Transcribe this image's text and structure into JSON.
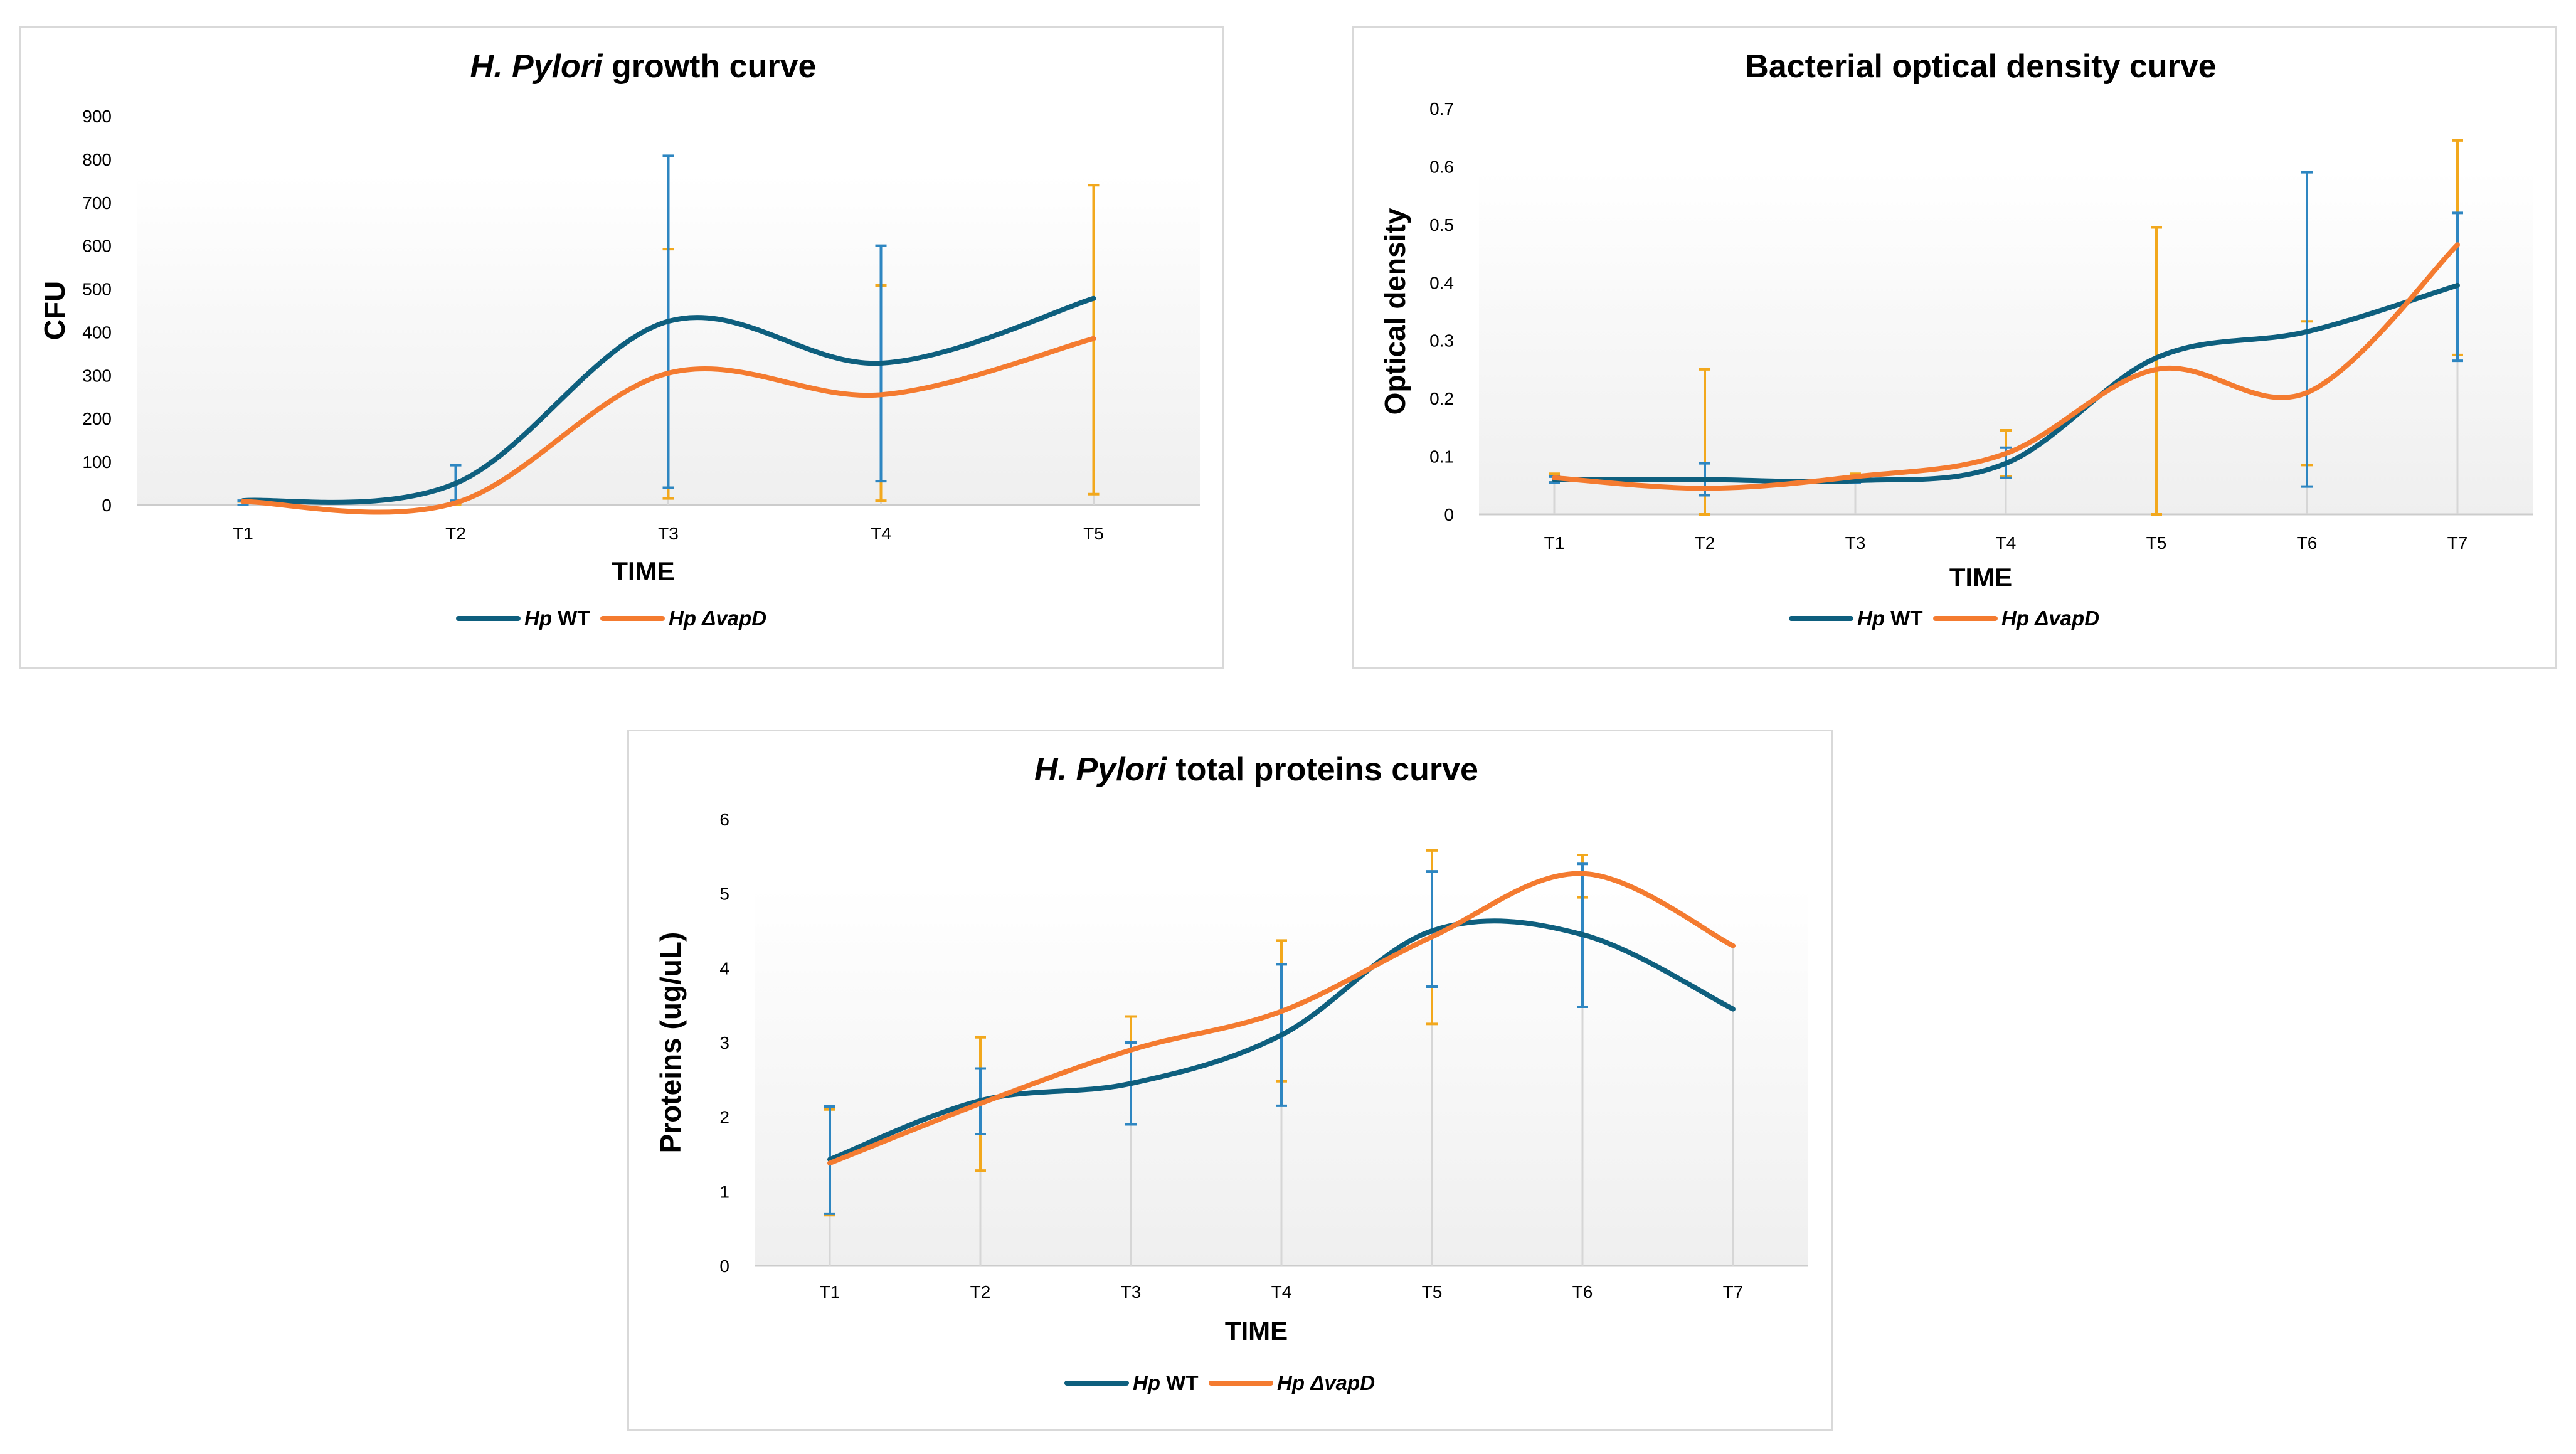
{
  "colors": {
    "wt": "#0e5f7e",
    "vapd": "#f47b30",
    "err_wt": "#2e86c1",
    "err_vapd": "#f2a81d",
    "drop": "#d6d6d6",
    "axis": "#cccccc"
  },
  "chart_data": [
    {
      "id": "growth",
      "type": "line",
      "title_italic": "H. Pylori",
      "title_rest": " growth curve",
      "xlabel": "TIME",
      "ylabel": "CFU",
      "categories": [
        "T1",
        "T2",
        "T3",
        "T4",
        "T5"
      ],
      "ylim": [
        0,
        900
      ],
      "yticks": [
        0,
        100,
        200,
        300,
        400,
        500,
        600,
        700,
        800,
        900
      ],
      "legend_position": "bottom",
      "series": [
        {
          "name": "Hp WT",
          "name_italic": "Hp",
          "name_rest": " WT",
          "key": "wt",
          "values": [
            10,
            50,
            425,
            328,
            478
          ],
          "err_low": [
            0,
            10,
            40,
            55,
            478
          ],
          "err_high": [
            10,
            92,
            808,
            600,
            478
          ]
        },
        {
          "name": "Hp ΔvapD",
          "name_italic": "Hp",
          "name_rest": " ΔvapD",
          "key": "vapd",
          "values": [
            8,
            5,
            305,
            255,
            385
          ],
          "err_low": [
            0,
            0,
            15,
            10,
            25
          ],
          "err_high": [
            8,
            5,
            592,
            508,
            740
          ]
        }
      ]
    },
    {
      "id": "od",
      "type": "line",
      "title_italic": "",
      "title_rest": "Bacterial optical density curve",
      "xlabel": "TIME",
      "ylabel": "Optical density",
      "categories": [
        "T1",
        "T2",
        "T3",
        "T4",
        "T5",
        "T6",
        "T7"
      ],
      "ylim": [
        0,
        0.7
      ],
      "yticks": [
        0,
        0.1,
        0.2,
        0.3,
        0.4,
        0.5,
        0.6,
        0.7
      ],
      "legend_position": "bottom",
      "series": [
        {
          "name": "Hp WT",
          "name_italic": "Hp",
          "name_rest": " WT",
          "key": "wt",
          "values": [
            0.06,
            0.06,
            0.058,
            0.088,
            0.27,
            0.315,
            0.395
          ],
          "err_low": [
            0.055,
            0.033,
            0.055,
            0.063,
            0.27,
            0.048,
            0.265
          ],
          "err_high": [
            0.065,
            0.088,
            0.063,
            0.115,
            0.27,
            0.59,
            0.52
          ]
        },
        {
          "name": "Hp ΔvapD",
          "name_italic": "Hp",
          "name_rest": " ΔvapD",
          "key": "vapd",
          "values": [
            0.063,
            0.045,
            0.065,
            0.105,
            0.25,
            0.21,
            0.465
          ],
          "err_low": [
            0.055,
            0.0,
            0.06,
            0.065,
            0.0,
            0.085,
            0.275
          ],
          "err_high": [
            0.07,
            0.25,
            0.07,
            0.145,
            0.495,
            0.333,
            0.645
          ]
        }
      ]
    },
    {
      "id": "proteins",
      "type": "line",
      "title_italic": "H. Pylori",
      "title_rest": " total proteins curve",
      "xlabel": "TIME",
      "ylabel": "Proteins (ug/uL)",
      "categories": [
        "T1",
        "T2",
        "T3",
        "T4",
        "T5",
        "T6",
        "T7"
      ],
      "ylim": [
        0,
        6
      ],
      "yticks": [
        0,
        1,
        2,
        3,
        4,
        5,
        6
      ],
      "legend_position": "bottom",
      "series": [
        {
          "name": "Hp WT",
          "name_italic": "Hp",
          "name_rest": " WT",
          "key": "wt",
          "values": [
            1.43,
            2.22,
            2.45,
            3.1,
            4.5,
            4.45,
            3.45
          ],
          "err_low": [
            0.7,
            1.77,
            1.9,
            2.15,
            3.75,
            3.48,
            3.45
          ],
          "err_high": [
            2.14,
            2.65,
            3.0,
            4.05,
            5.3,
            5.4,
            3.45
          ]
        },
        {
          "name": "Hp ΔvapD",
          "name_italic": "Hp",
          "name_rest": " ΔvapD",
          "key": "vapd",
          "values": [
            1.38,
            2.18,
            2.9,
            3.42,
            4.42,
            5.27,
            4.3
          ],
          "err_low": [
            0.68,
            1.28,
            2.45,
            2.48,
            3.25,
            4.95,
            4.3
          ],
          "err_high": [
            2.1,
            3.07,
            3.35,
            4.37,
            5.58,
            5.52,
            4.3
          ]
        }
      ]
    }
  ]
}
